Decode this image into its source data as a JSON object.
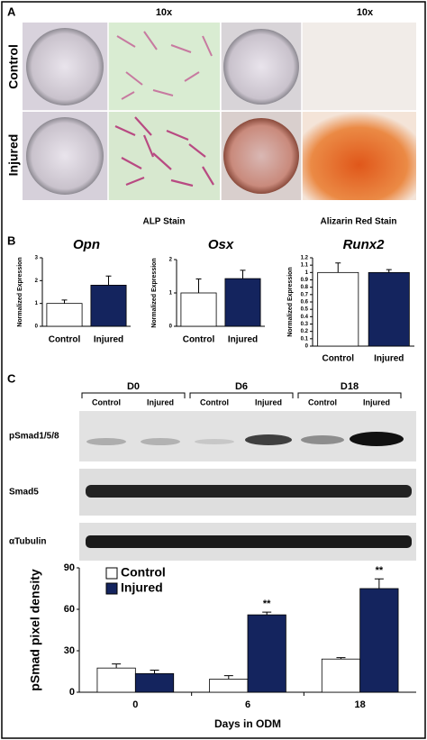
{
  "panel_a": {
    "label": "A",
    "column_headers": [
      "10x",
      "10x"
    ],
    "row_labels": [
      "Control",
      "Injured"
    ],
    "stain_labels": [
      "ALP Stain",
      "Alizarin Red Stain"
    ]
  },
  "panel_b": {
    "label": "B"
  },
  "panel_c": {
    "label": "C",
    "blot": {
      "groups": [
        {
          "name": "D0",
          "lanes": [
            "Control",
            "Injured"
          ]
        },
        {
          "name": "D6",
          "lanes": [
            "Control",
            "Injured"
          ]
        },
        {
          "name": "D18",
          "lanes": [
            "Control",
            "Injured"
          ]
        }
      ],
      "rows": [
        "pSmad1/5/8",
        "Smad5",
        "αTubulin"
      ]
    }
  },
  "chart_data": [
    {
      "type": "bar",
      "title": "Opn",
      "y_label": "Normalized Expression",
      "categories": [
        "Control",
        "Injured"
      ],
      "values": [
        1.0,
        1.8
      ],
      "errors": [
        0.15,
        0.4
      ],
      "colors": [
        "#ffffff",
        "#14245e"
      ],
      "ylim": [
        0,
        3
      ],
      "yticks": [
        0,
        1,
        2,
        3
      ]
    },
    {
      "type": "bar",
      "title": "Osx",
      "y_label": "Normalized Expression",
      "categories": [
        "Control",
        "Injured"
      ],
      "values": [
        1.0,
        1.43
      ],
      "errors": [
        0.42,
        0.25
      ],
      "colors": [
        "#ffffff",
        "#14245e"
      ],
      "ylim": [
        0,
        2
      ],
      "yticks": [
        0,
        1,
        2
      ]
    },
    {
      "type": "bar",
      "title": "Runx2",
      "y_label": "Normalized Expression",
      "categories": [
        "Control",
        "Injured"
      ],
      "values": [
        1.0,
        1.0
      ],
      "errors": [
        0.13,
        0.04
      ],
      "colors": [
        "#ffffff",
        "#14245e"
      ],
      "ylim": [
        0,
        1.2
      ],
      "yticks": [
        0,
        0.1,
        0.2,
        0.3,
        0.4,
        0.5,
        0.6,
        0.7,
        0.8,
        0.9,
        1,
        1.1,
        1.2
      ]
    },
    {
      "type": "grouped-bar",
      "x_label": "Days in ODM",
      "y_label": "pSmad pixel density",
      "categories": [
        "0",
        "6",
        "18"
      ],
      "series": [
        {
          "name": "Control",
          "color": "#ffffff",
          "values": [
            17.5,
            9.5,
            24
          ],
          "errors": [
            3,
            2.5,
            1
          ],
          "significance": [
            null,
            null,
            null
          ]
        },
        {
          "name": "Injured",
          "color": "#14245e",
          "values": [
            13.5,
            56,
            75
          ],
          "errors": [
            2.5,
            2,
            7
          ],
          "significance": [
            null,
            "**",
            "**"
          ]
        }
      ],
      "ylim": [
        0,
        90
      ],
      "yticks": [
        0,
        30,
        60,
        90
      ],
      "legend": "top-left"
    }
  ]
}
